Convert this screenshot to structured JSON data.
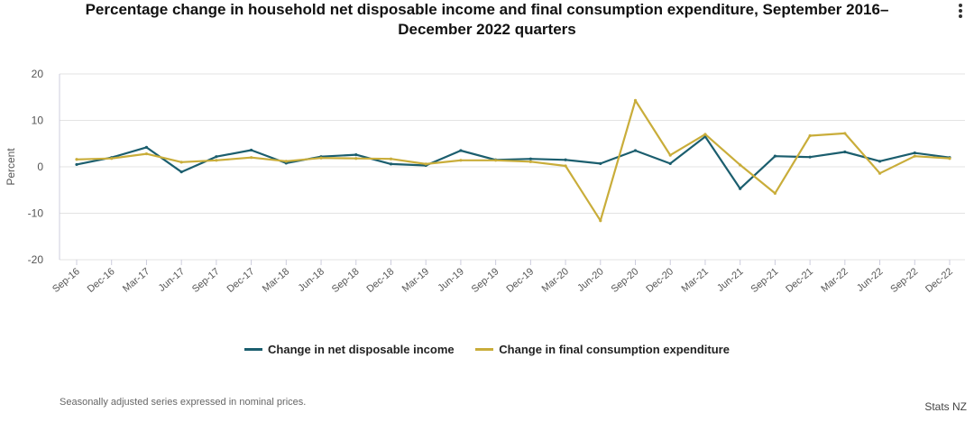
{
  "menu": {
    "icon": "kebab-menu-icon"
  },
  "chart_data": {
    "type": "line",
    "title": "Percentage change in household net disposable income and final consumption expenditure, September 2016–December 2022 quarters",
    "ylabel": "Percent",
    "xlabel": "",
    "ylim": [
      -20,
      20
    ],
    "yticks": [
      20,
      10,
      0,
      -10,
      -20
    ],
    "categories": [
      "Sep-16",
      "Dec-16",
      "Mar-17",
      "Jun-17",
      "Sep-17",
      "Dec-17",
      "Mar-18",
      "Jun-18",
      "Sep-18",
      "Dec-18",
      "Mar-19",
      "Jun-19",
      "Sep-19",
      "Dec-19",
      "Mar-20",
      "Jun-20",
      "Sep-20",
      "Dec-20",
      "Mar-21",
      "Jun-21",
      "Sep-21",
      "Dec-21",
      "Mar-22",
      "Jun-22",
      "Sep-22",
      "Dec-22"
    ],
    "series": [
      {
        "name": "Change in net disposable income",
        "color": "#1b5e6e",
        "values": [
          0.5,
          2.0,
          4.2,
          -1.1,
          2.2,
          3.6,
          0.8,
          2.2,
          2.6,
          0.6,
          0.3,
          3.5,
          1.5,
          1.7,
          1.5,
          0.7,
          3.5,
          0.7,
          6.5,
          -4.7,
          2.3,
          2.1,
          3.2,
          1.2,
          3.0,
          2.0
        ]
      },
      {
        "name": "Change in final consumption expenditure",
        "color": "#c9ad3a",
        "values": [
          1.6,
          1.8,
          2.8,
          1.0,
          1.4,
          2.0,
          1.2,
          1.9,
          1.8,
          1.7,
          0.6,
          1.4,
          1.4,
          1.1,
          0.2,
          -11.6,
          14.3,
          2.5,
          7.0,
          0.4,
          -5.7,
          6.7,
          7.2,
          -1.4,
          2.3,
          1.8
        ]
      }
    ],
    "grid": true,
    "legend": "bottom-center"
  },
  "footer": {
    "note": "Seasonally adjusted series expressed in nominal prices.",
    "source": "Stats NZ"
  }
}
